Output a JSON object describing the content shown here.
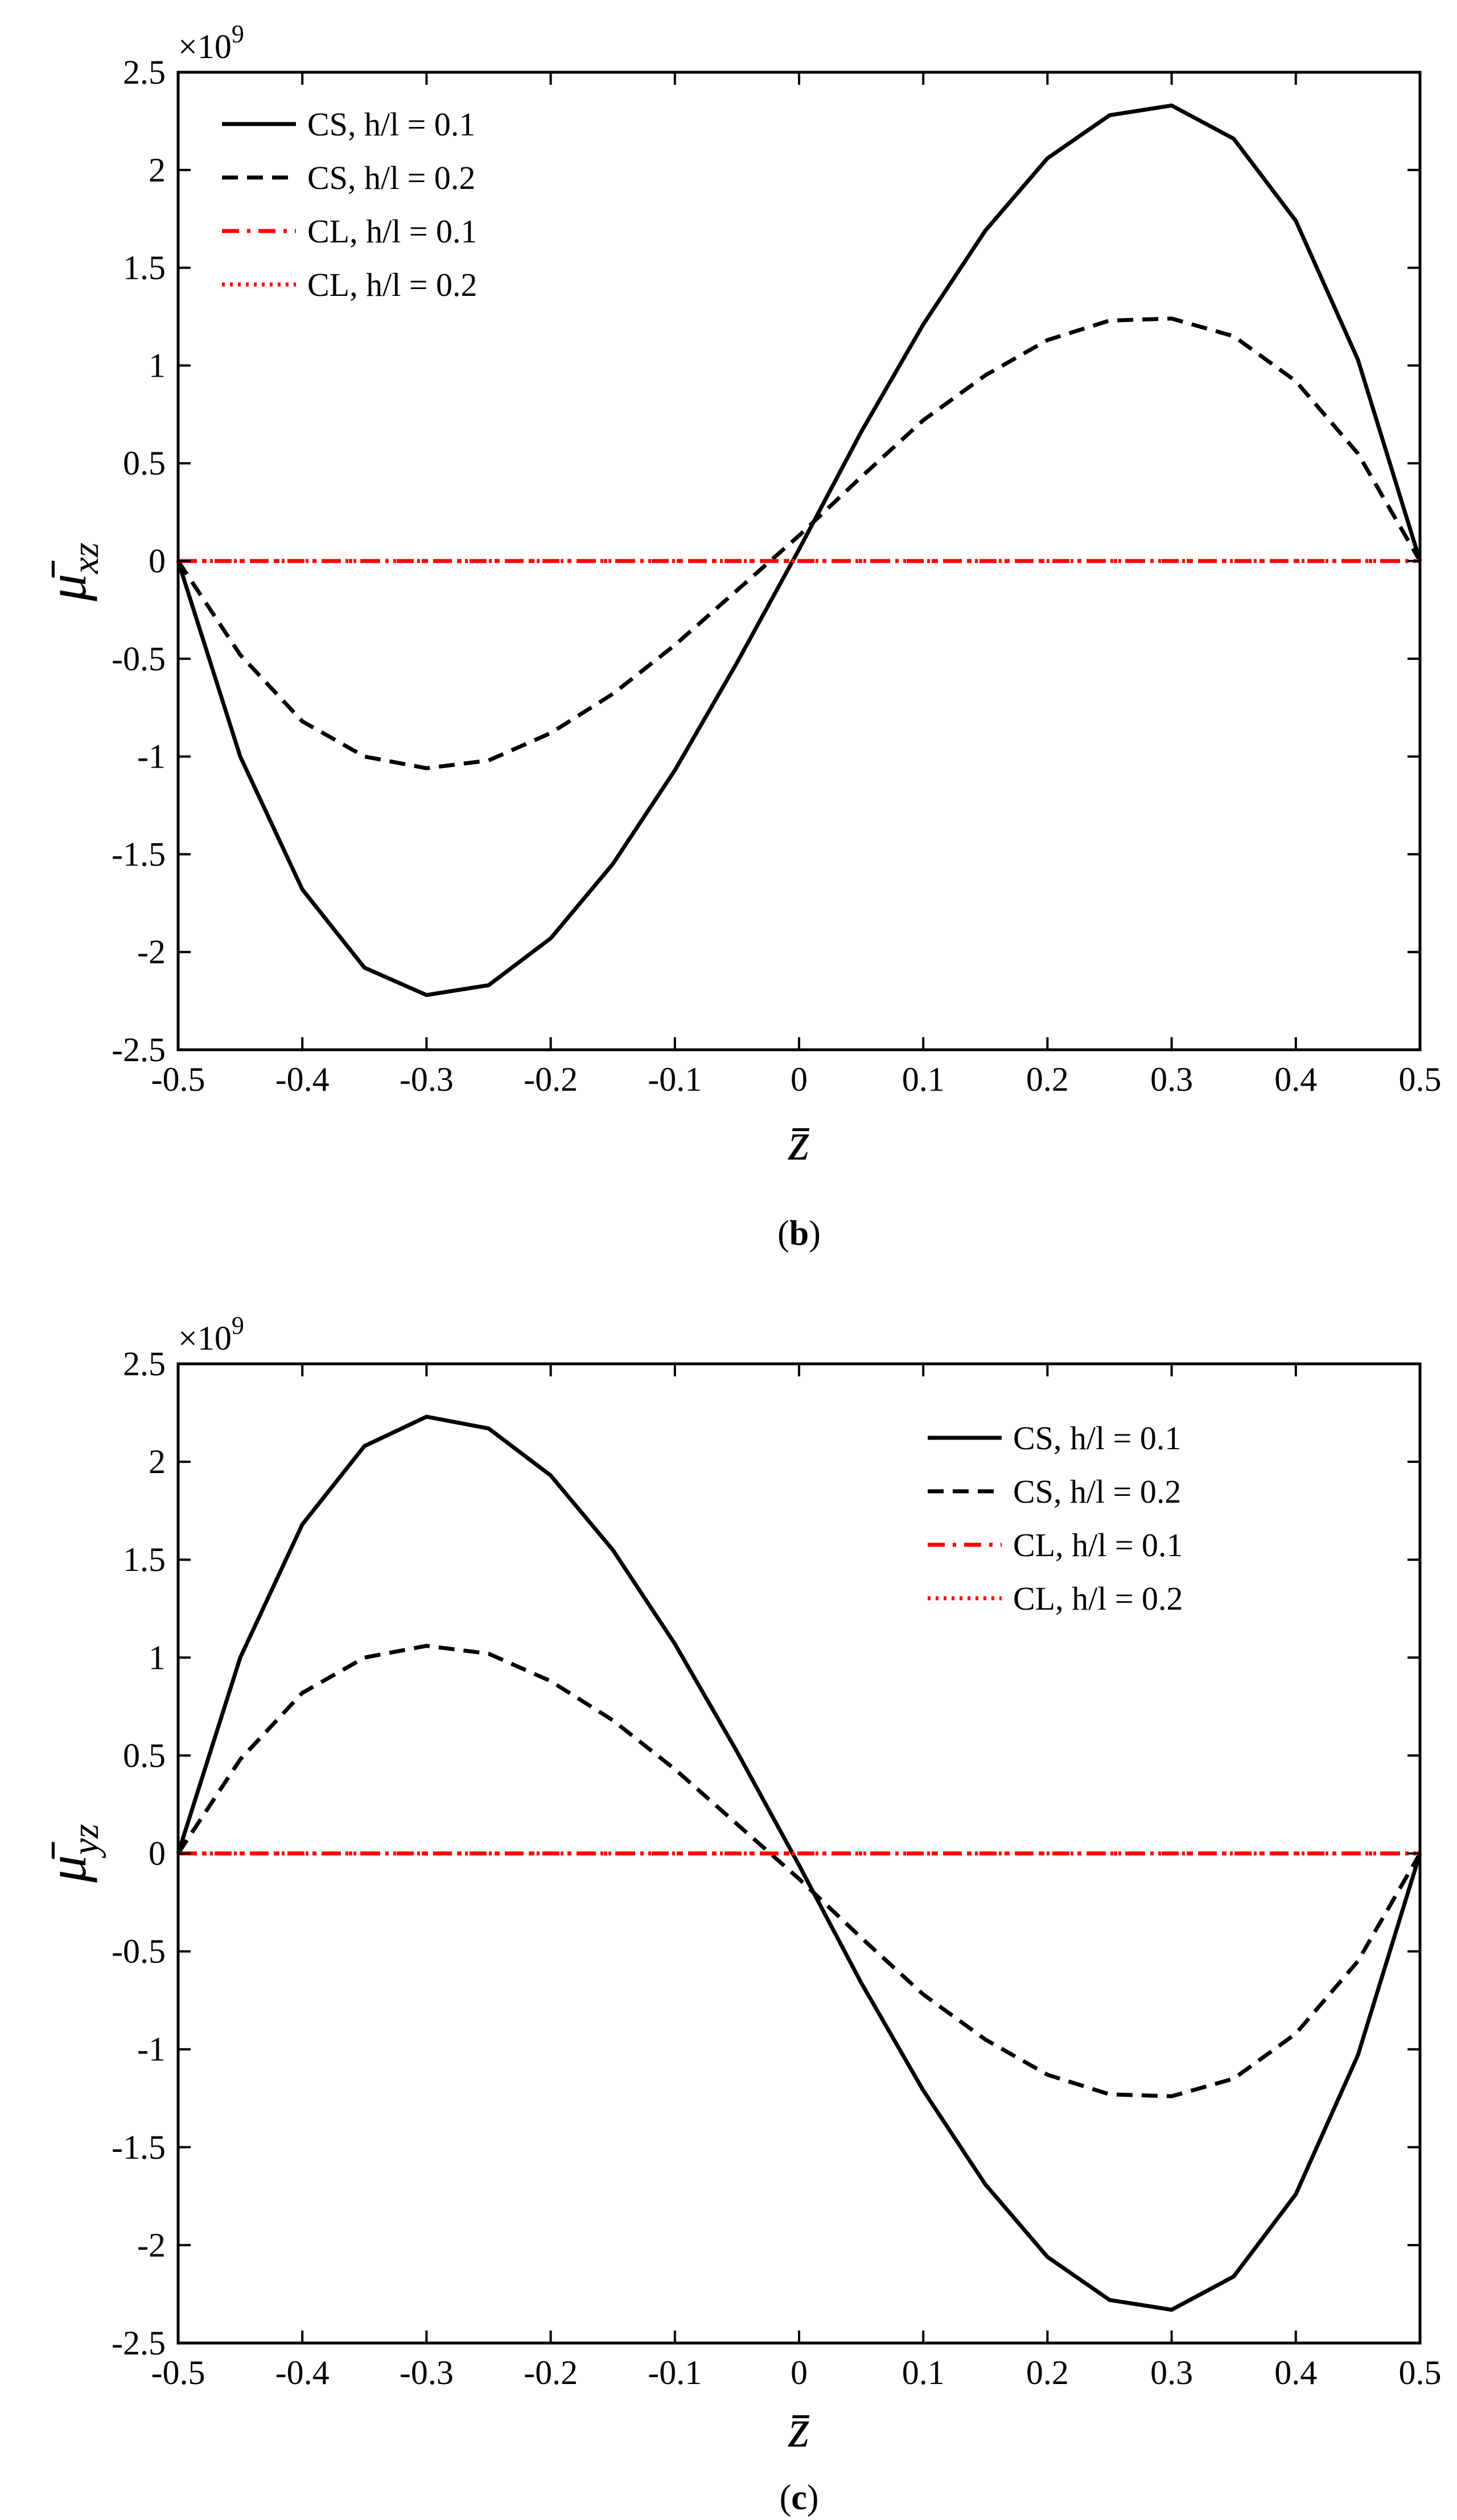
{
  "chart_data": [
    {
      "type": "line",
      "panel_label_prefix": "(",
      "panel_label_letter": "b",
      "panel_label_suffix": ")",
      "ylabel_main": "μ̄",
      "ylabel_sub": "xz",
      "xlabel": "z̄",
      "y_multiplier": "×10",
      "y_multiplier_exp": "9",
      "xlim": [
        -0.5,
        0.5
      ],
      "ylim": [
        -2.5,
        2.5
      ],
      "x_ticks": [
        -0.5,
        -0.4,
        -0.3,
        -0.2,
        -0.1,
        0,
        0.1,
        0.2,
        0.3,
        0.4,
        0.5
      ],
      "x_tick_labels": [
        "-0.5",
        "-0.4",
        "-0.3",
        "-0.2",
        "-0.1",
        "0",
        "0.1",
        "0.2",
        "0.3",
        "0.4",
        "0.5"
      ],
      "y_ticks": [
        -2.5,
        -2,
        -1.5,
        -1,
        -0.5,
        0,
        0.5,
        1,
        1.5,
        2,
        2.5
      ],
      "y_tick_labels": [
        "-2.5",
        "-2",
        "-1.5",
        "-1",
        "-0.5",
        "0",
        "0.5",
        "1",
        "1.5",
        "2",
        "2.5"
      ],
      "legend_position": "top-left",
      "x": [
        -0.5,
        -0.45,
        -0.4,
        -0.35,
        -0.3,
        -0.25,
        -0.2,
        -0.15,
        -0.1,
        -0.05,
        0,
        0.05,
        0.1,
        0.15,
        0.2,
        0.25,
        0.3,
        0.35,
        0.4,
        0.45,
        0.5
      ],
      "series": [
        {
          "name": "CS, h/l = 0.1",
          "color": "#000000",
          "style": "solid",
          "values": [
            0,
            -1.0,
            -1.68,
            -2.08,
            -2.22,
            -2.17,
            -1.93,
            -1.55,
            -1.07,
            -0.52,
            0.06,
            0.66,
            1.21,
            1.69,
            2.06,
            2.28,
            2.33,
            2.16,
            1.74,
            1.03,
            0
          ]
        },
        {
          "name": "CS, h/l = 0.2",
          "color": "#000000",
          "style": "dashed",
          "values": [
            0,
            -0.48,
            -0.82,
            -1.0,
            -1.06,
            -1.02,
            -0.88,
            -0.68,
            -0.43,
            -0.15,
            0.13,
            0.43,
            0.72,
            0.95,
            1.13,
            1.23,
            1.24,
            1.15,
            0.92,
            0.55,
            0
          ]
        },
        {
          "name": "CL, h/l = 0.1",
          "color": "#ff0000",
          "style": "dashdot",
          "values": [
            0,
            0,
            0,
            0,
            0,
            0,
            0,
            0,
            0,
            0,
            0,
            0,
            0,
            0,
            0,
            0,
            0,
            0,
            0,
            0,
            0
          ]
        },
        {
          "name": "CL, h/l = 0.2",
          "color": "#ff0000",
          "style": "dotted",
          "values": [
            0,
            0,
            0,
            0,
            0,
            0,
            0,
            0,
            0,
            0,
            0,
            0,
            0,
            0,
            0,
            0,
            0,
            0,
            0,
            0,
            0
          ]
        }
      ]
    },
    {
      "type": "line",
      "panel_label_prefix": "(",
      "panel_label_letter": "c",
      "panel_label_suffix": ")",
      "ylabel_main": "μ̄",
      "ylabel_sub": "yz",
      "xlabel": "z̄",
      "y_multiplier": "×10",
      "y_multiplier_exp": "9",
      "xlim": [
        -0.5,
        0.5
      ],
      "ylim": [
        -2.5,
        2.5
      ],
      "x_ticks": [
        -0.5,
        -0.4,
        -0.3,
        -0.2,
        -0.1,
        0,
        0.1,
        0.2,
        0.3,
        0.4,
        0.5
      ],
      "x_tick_labels": [
        "-0.5",
        "-0.4",
        "-0.3",
        "-0.2",
        "-0.1",
        "0",
        "0.1",
        "0.2",
        "0.3",
        "0.4",
        "0.5"
      ],
      "y_ticks": [
        -2.5,
        -2,
        -1.5,
        -1,
        -0.5,
        0,
        0.5,
        1,
        1.5,
        2,
        2.5
      ],
      "y_tick_labels": [
        "-2.5",
        "-2",
        "-1.5",
        "-1",
        "-0.5",
        "0",
        "0.5",
        "1",
        "1.5",
        "2",
        "2.5"
      ],
      "legend_position": "top-right",
      "x": [
        -0.5,
        -0.45,
        -0.4,
        -0.35,
        -0.3,
        -0.25,
        -0.2,
        -0.15,
        -0.1,
        -0.05,
        0,
        0.05,
        0.1,
        0.15,
        0.2,
        0.25,
        0.3,
        0.35,
        0.4,
        0.45,
        0.5
      ],
      "series": [
        {
          "name": "CS, h/l = 0.1",
          "color": "#000000",
          "style": "solid",
          "values": [
            0,
            1.0,
            1.68,
            2.08,
            2.23,
            2.17,
            1.93,
            1.55,
            1.07,
            0.52,
            -0.06,
            -0.66,
            -1.21,
            -1.69,
            -2.06,
            -2.28,
            -2.33,
            -2.16,
            -1.74,
            -1.03,
            0
          ]
        },
        {
          "name": "CS, h/l = 0.2",
          "color": "#000000",
          "style": "dashed",
          "values": [
            0,
            0.48,
            0.82,
            1.0,
            1.06,
            1.02,
            0.88,
            0.68,
            0.43,
            0.15,
            -0.13,
            -0.43,
            -0.72,
            -0.95,
            -1.13,
            -1.23,
            -1.24,
            -1.15,
            -0.92,
            -0.55,
            0
          ]
        },
        {
          "name": "CL, h/l = 0.1",
          "color": "#ff0000",
          "style": "dashdot",
          "values": [
            0,
            0,
            0,
            0,
            0,
            0,
            0,
            0,
            0,
            0,
            0,
            0,
            0,
            0,
            0,
            0,
            0,
            0,
            0,
            0,
            0
          ]
        },
        {
          "name": "CL, h/l = 0.2",
          "color": "#ff0000",
          "style": "dotted",
          "values": [
            0,
            0,
            0,
            0,
            0,
            0,
            0,
            0,
            0,
            0,
            0,
            0,
            0,
            0,
            0,
            0,
            0,
            0,
            0,
            0,
            0
          ]
        }
      ]
    }
  ]
}
